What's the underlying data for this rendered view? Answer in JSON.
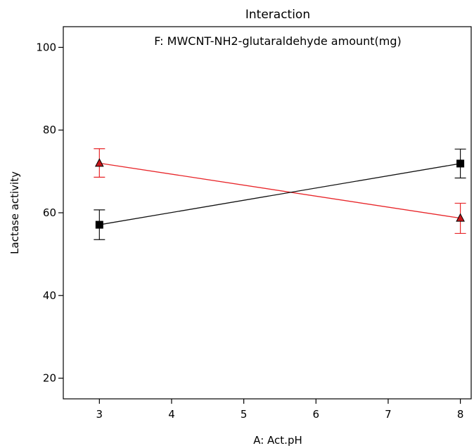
{
  "chart_data": {
    "type": "line",
    "title": "Interaction",
    "subtitle": "F: MWCNT-NH2-glutaraldehyde amount(mg)",
    "xlabel": "A: Act.pH",
    "ylabel": "Lactase activity",
    "xlim": [
      2.5,
      8.15
    ],
    "ylim": [
      15,
      105
    ],
    "xticks": [
      3,
      4,
      5,
      6,
      7,
      8
    ],
    "yticks": [
      20,
      40,
      60,
      80,
      100
    ],
    "grid": false,
    "series": [
      {
        "color": "#e8262a",
        "marker": "triangle",
        "x": [
          3,
          8
        ],
        "y": [
          72,
          58.7
        ],
        "err_low": [
          68.6,
          55.0
        ],
        "err_high": [
          75.5,
          62.3
        ]
      },
      {
        "color": "#111111",
        "marker": "square",
        "x": [
          3,
          8
        ],
        "y": [
          57.1,
          71.9
        ],
        "err_low": [
          53.5,
          68.4
        ],
        "err_high": [
          60.7,
          75.4
        ]
      }
    ]
  }
}
